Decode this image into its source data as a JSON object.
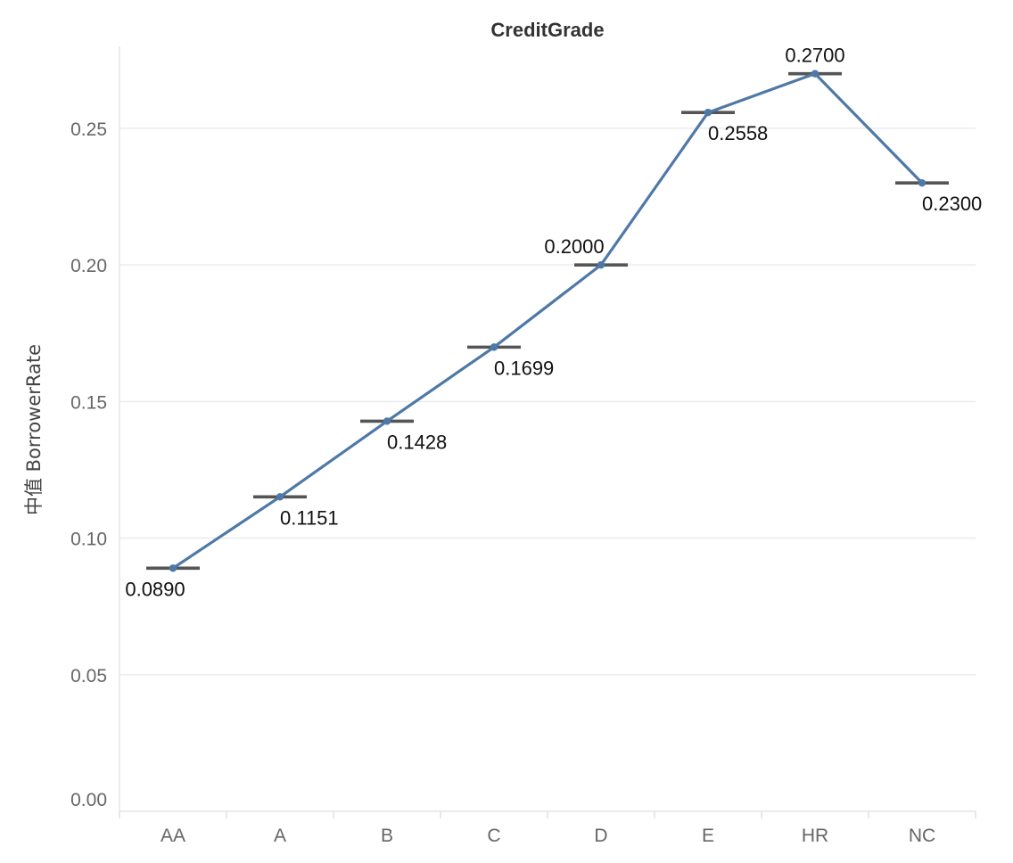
{
  "chart_data": {
    "type": "line",
    "title": "CreditGrade",
    "xlabel": "",
    "ylabel": "中值 BorrowerRate",
    "categories": [
      "AA",
      "A",
      "B",
      "C",
      "D",
      "E",
      "HR",
      "NC"
    ],
    "values": [
      0.089,
      0.1151,
      0.1428,
      0.1699,
      0.2,
      0.2558,
      0.27,
      0.23
    ],
    "data_labels": [
      "0.0890",
      "0.1151",
      "0.1428",
      "0.1699",
      "0.2000",
      "0.2558",
      "0.2700",
      "0.2300"
    ],
    "ylim": [
      0,
      0.28
    ],
    "yticks": [
      0.0,
      0.05,
      0.1,
      0.15,
      0.2,
      0.25
    ],
    "ytick_labels": [
      "0.00",
      "0.05",
      "0.10",
      "0.15",
      "0.20",
      "0.25"
    ],
    "grid": true,
    "legend": "none",
    "colors": {
      "line": "#4e79a7",
      "marker": "#4e79a7",
      "reference_bar": "#555555"
    }
  }
}
